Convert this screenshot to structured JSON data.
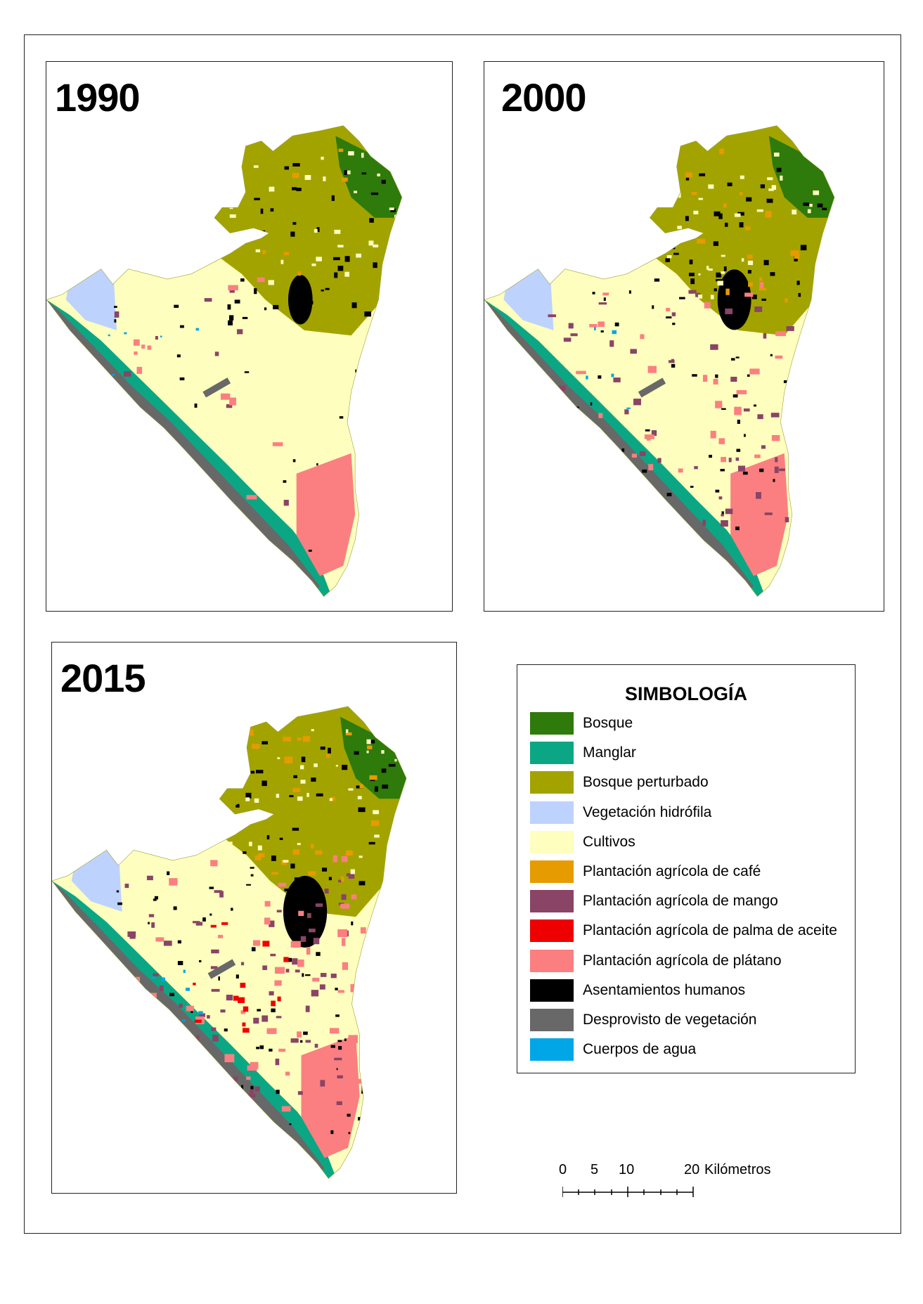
{
  "maps": [
    {
      "year": "1990"
    },
    {
      "year": "2000"
    },
    {
      "year": "2015"
    }
  ],
  "legend": {
    "title": "SIMBOLOGÍA",
    "items": [
      {
        "label": "Bosque",
        "color": "#2e7a0a",
        "icon": "bosque-swatch"
      },
      {
        "label": "Manglar",
        "color": "#0ba784",
        "icon": "manglar-swatch"
      },
      {
        "label": "Bosque perturbado",
        "color": "#a3a300",
        "icon": "bosque-perturbado-swatch"
      },
      {
        "label": "Vegetación hidrófila",
        "color": "#bed2fe",
        "icon": "vegetacion-hidrofila-swatch"
      },
      {
        "label": "Cultivos",
        "color": "#fefebe",
        "icon": "cultivos-swatch"
      },
      {
        "label": "Plantación agrícola de café",
        "color": "#e69b00",
        "icon": "cafe-swatch"
      },
      {
        "label": "Plantación agrícola de mango",
        "color": "#894466",
        "icon": "mango-swatch"
      },
      {
        "label": "Plantación agrícola de palma de aceite",
        "color": "#ee0000",
        "icon": "palma-swatch"
      },
      {
        "label": "Plantación agrícola de plátano",
        "color": "#fb7f80",
        "icon": "platano-swatch"
      },
      {
        "label": "Asentamientos humanos",
        "color": "#000000",
        "icon": "asentamientos-swatch"
      },
      {
        "label": "Desprovisto de vegetación",
        "color": "#686868",
        "icon": "desprovisto-swatch"
      },
      {
        "label": "Cuerpos de agua",
        "color": "#00a6e6",
        "icon": "agua-swatch"
      }
    ]
  },
  "scale": {
    "ticks": [
      "0",
      "5",
      "10",
      "20"
    ],
    "unit": "Kilómetros"
  }
}
